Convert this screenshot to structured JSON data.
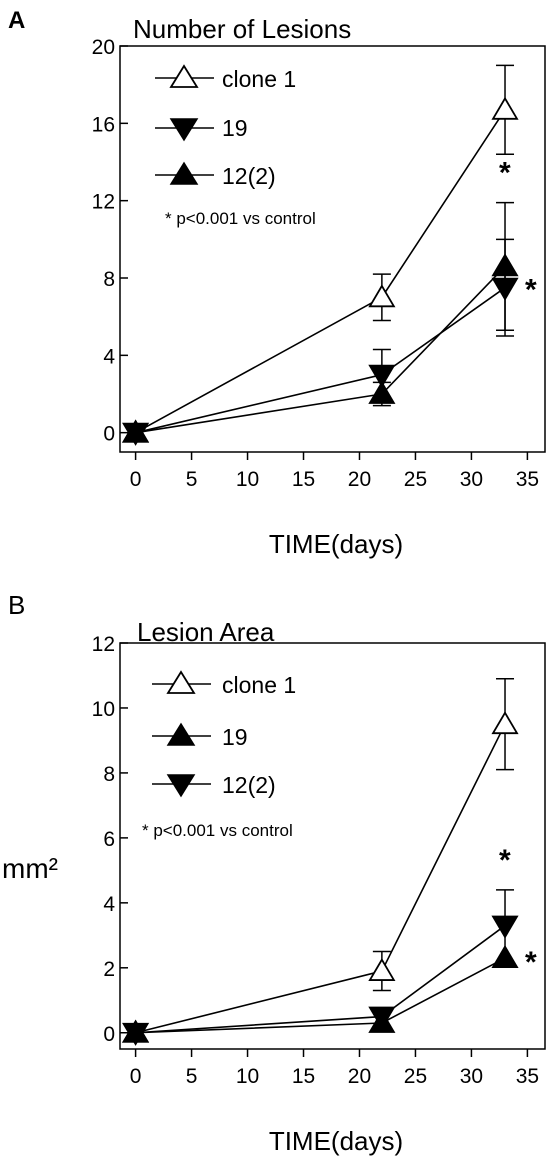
{
  "panel_labels": [
    "A",
    "B"
  ],
  "chart_data": [
    {
      "type": "line",
      "panel": "A",
      "title": "Number of Lesions",
      "xlabel": "TIME(days)",
      "ylabel": "",
      "xlim": [
        0,
        35
      ],
      "ylim": [
        0,
        20
      ],
      "xticks": [
        0,
        5,
        10,
        15,
        20,
        25,
        30,
        35
      ],
      "yticks": [
        0,
        4,
        8,
        12,
        16,
        20
      ],
      "grid": false,
      "legend_position": "top-left",
      "annotation": "* p<0.001 vs control",
      "significance_marks": [
        {
          "text": "*",
          "series": "12(2)",
          "x": 33
        },
        {
          "text": "*",
          "series": "19",
          "x": 33
        }
      ],
      "series": [
        {
          "name": "clone 1",
          "marker": "triangle-up-open",
          "x": [
            0,
            22,
            33
          ],
          "y": [
            0,
            7,
            16.7
          ],
          "err": [
            0,
            1.2,
            2.3
          ]
        },
        {
          "name": "19",
          "marker": "triangle-down-filled",
          "x": [
            0,
            22,
            33
          ],
          "y": [
            0,
            3,
            7.5
          ],
          "err": [
            0,
            1.3,
            2.5
          ]
        },
        {
          "name": "12(2)",
          "marker": "triangle-up-filled",
          "x": [
            0,
            22,
            33
          ],
          "y": [
            0,
            2,
            8.6
          ],
          "err": [
            0,
            0.6,
            3.3
          ]
        }
      ]
    },
    {
      "type": "line",
      "panel": "B",
      "title": "Lesion Area",
      "xlabel": "TIME(days)",
      "ylabel": "mm²",
      "xlim": [
        0,
        35
      ],
      "ylim": [
        0,
        12
      ],
      "xticks": [
        0,
        5,
        10,
        15,
        20,
        25,
        30,
        35
      ],
      "yticks": [
        0,
        2,
        4,
        6,
        8,
        10,
        12
      ],
      "grid": false,
      "legend_position": "top-left",
      "annotation": "* p<0.001 vs control",
      "significance_marks": [
        {
          "text": "*",
          "series": "12(2)",
          "x": 33
        },
        {
          "text": "*",
          "series": "19",
          "x": 33
        }
      ],
      "series": [
        {
          "name": "clone 1",
          "marker": "triangle-up-open",
          "x": [
            0,
            22,
            33
          ],
          "y": [
            0,
            1.9,
            9.5
          ],
          "err": [
            0,
            0.6,
            1.4
          ]
        },
        {
          "name": "19",
          "marker": "triangle-up-filled",
          "x": [
            0,
            22,
            33
          ],
          "y": [
            0,
            0.3,
            2.3
          ],
          "err": [
            0,
            0,
            0
          ]
        },
        {
          "name": "12(2)",
          "marker": "triangle-down-filled",
          "x": [
            0,
            22,
            33
          ],
          "y": [
            0,
            0.5,
            3.3
          ],
          "err": [
            0,
            0,
            1.1
          ]
        }
      ]
    }
  ]
}
